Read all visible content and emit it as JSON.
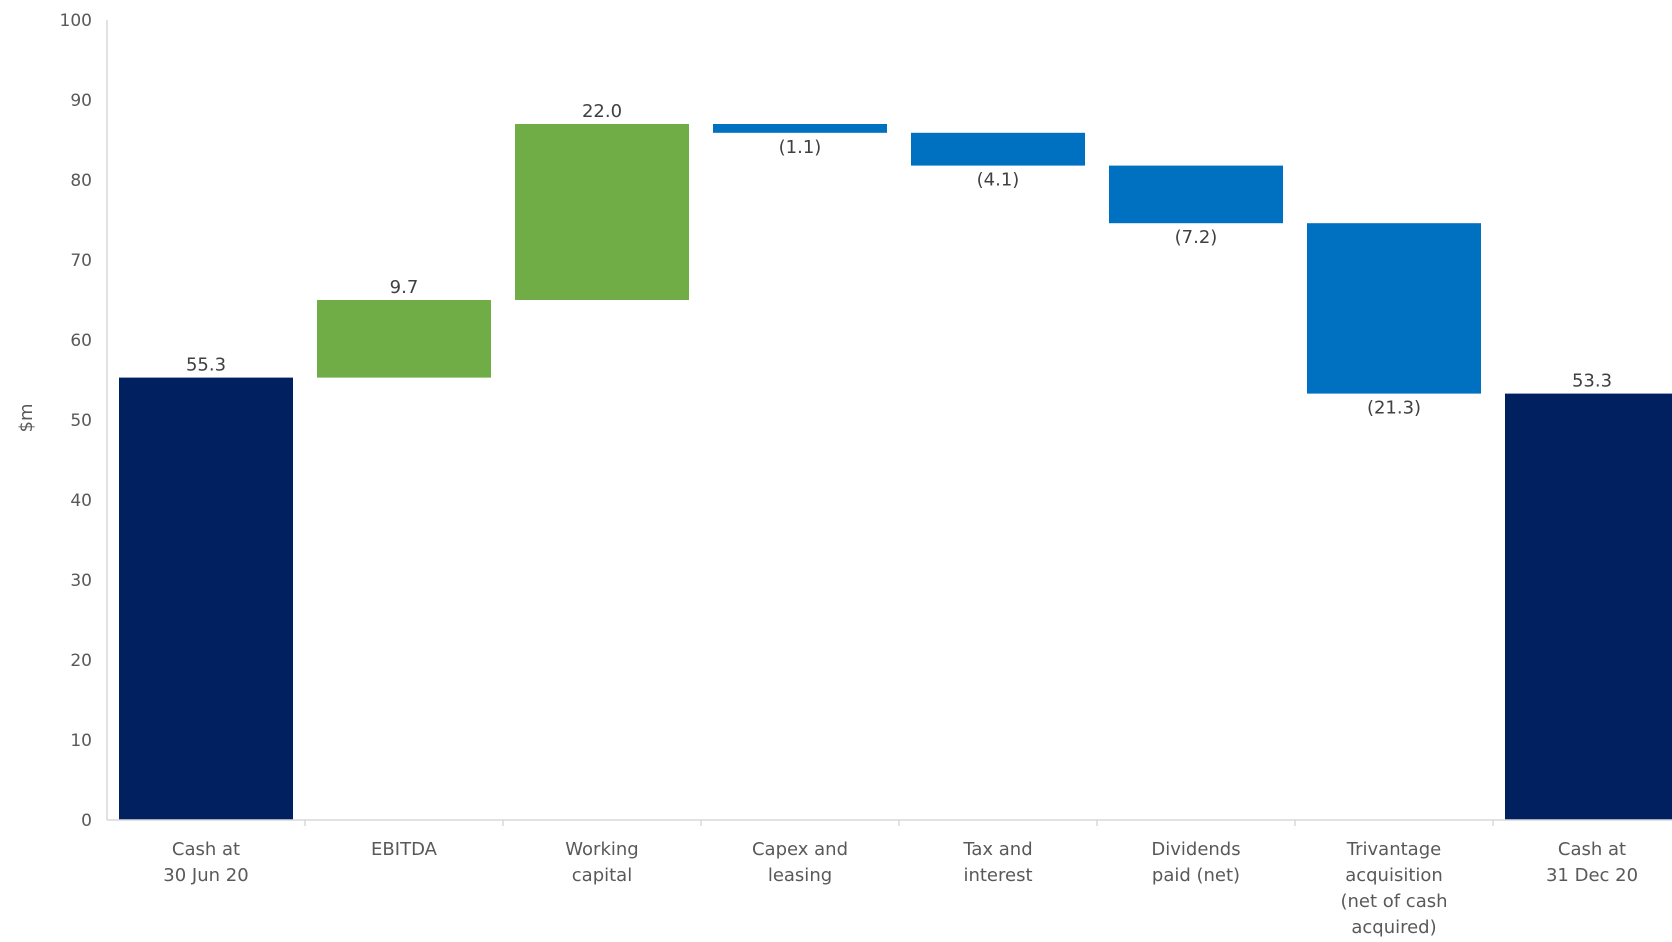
{
  "chart_data": {
    "type": "bar",
    "subtype": "waterfall",
    "ylabel": "$m",
    "ylim": [
      0,
      100
    ],
    "yticks": [
      0,
      10,
      20,
      30,
      40,
      50,
      60,
      70,
      80,
      90,
      100
    ],
    "grid": false,
    "legend": "none",
    "colors": {
      "total": "#002060",
      "increase": "#70AD47",
      "decrease": "#0070C0",
      "axis": "#D9D9D9"
    },
    "categories": [
      [
        "Cash at",
        "30 Jun 20"
      ],
      [
        "EBITDA"
      ],
      [
        "Working",
        "capital"
      ],
      [
        "Capex and",
        "leasing"
      ],
      [
        "Tax and",
        "interest"
      ],
      [
        "Dividends",
        "paid (net)"
      ],
      [
        "Trivantage",
        "acquisition",
        "(net of cash",
        "acquired)"
      ],
      [
        "Cash at",
        "31 Dec 20"
      ]
    ],
    "steps": [
      {
        "kind": "total",
        "value": 55.3,
        "label": "55.3"
      },
      {
        "kind": "increase",
        "value": 9.7,
        "label": "9.7"
      },
      {
        "kind": "increase",
        "value": 22.0,
        "label": "22.0"
      },
      {
        "kind": "decrease",
        "value": -1.1,
        "label": "(1.1)"
      },
      {
        "kind": "decrease",
        "value": -4.1,
        "label": "(4.1)"
      },
      {
        "kind": "decrease",
        "value": -7.2,
        "label": "(7.2)"
      },
      {
        "kind": "decrease",
        "value": -21.3,
        "label": "(21.3)"
      },
      {
        "kind": "total",
        "value": 53.3,
        "label": "53.3"
      }
    ]
  }
}
